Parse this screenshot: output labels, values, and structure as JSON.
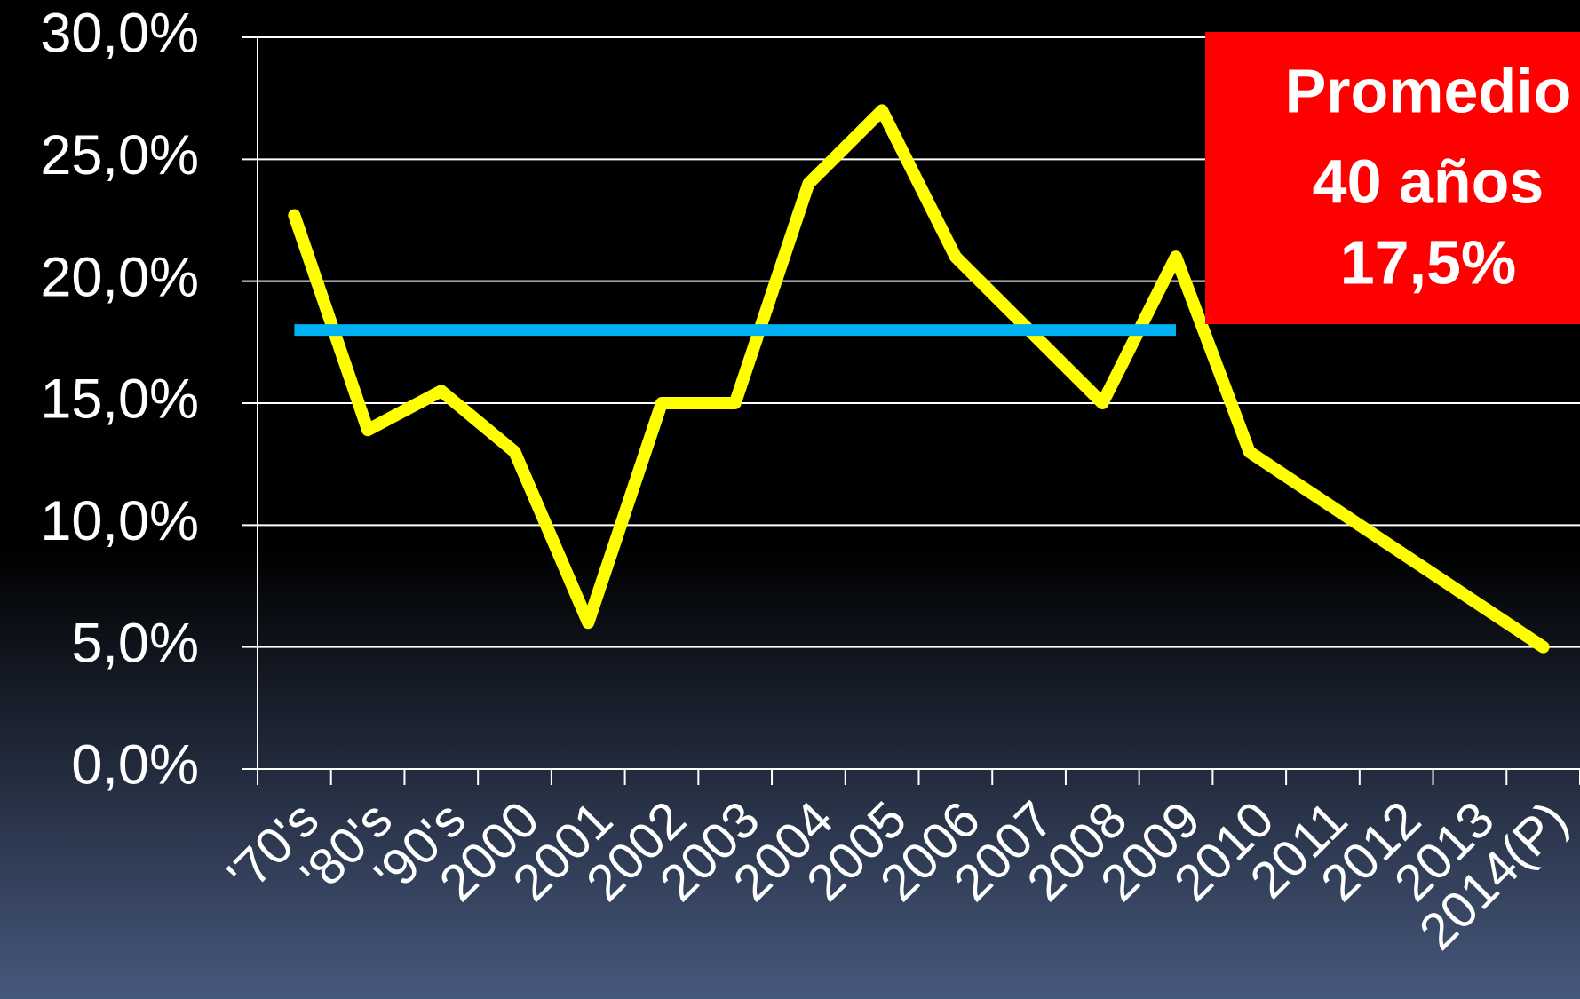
{
  "chart_data": {
    "type": "line",
    "categories": [
      "'70's",
      "'80's",
      "'90's",
      "2000",
      "2001",
      "2002",
      "2003",
      "2004",
      "2005",
      "2006",
      "2007",
      "2008",
      "2009",
      "2010",
      "2011",
      "2012",
      "2013",
      "2014(P)"
    ],
    "series": [
      {
        "color": "#ffff00",
        "values": [
          22.7,
          13.9,
          15.5,
          13,
          6,
          15,
          15,
          24,
          27,
          21,
          18,
          15,
          21,
          13,
          11,
          9,
          7,
          5
        ]
      },
      {
        "color": "#00b0f0",
        "values": [
          18,
          18,
          18,
          18,
          18,
          18,
          18,
          18,
          18,
          18,
          18,
          18,
          18,
          null,
          null,
          null,
          null,
          null
        ]
      }
    ],
    "ylim": [
      0,
      30
    ],
    "yticks": [
      {
        "value": 0,
        "label": "0,0%"
      },
      {
        "value": 5,
        "label": "5,0%"
      },
      {
        "value": 10,
        "label": "10,0%"
      },
      {
        "value": 15,
        "label": "15,0%"
      },
      {
        "value": 20,
        "label": "20,0%"
      },
      {
        "value": 25,
        "label": "25,0%"
      },
      {
        "value": 30,
        "label": "30,0%"
      }
    ],
    "grid": true,
    "annotation": {
      "lines": [
        "Promedio",
        "40 años",
        "17,5%"
      ],
      "color": "#ff0000"
    }
  }
}
